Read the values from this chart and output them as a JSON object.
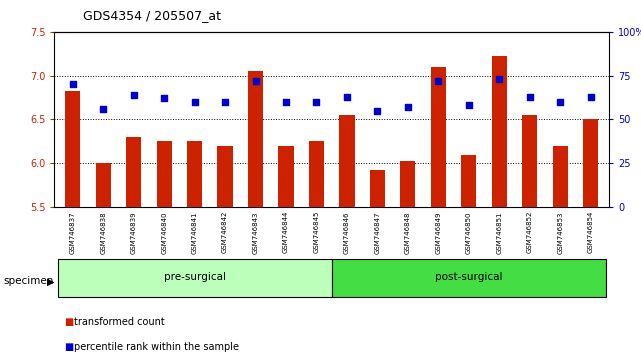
{
  "title": "GDS4354 / 205507_at",
  "samples": [
    "GSM746837",
    "GSM746838",
    "GSM746839",
    "GSM746840",
    "GSM746841",
    "GSM746842",
    "GSM746843",
    "GSM746844",
    "GSM746845",
    "GSM746846",
    "GSM746847",
    "GSM746848",
    "GSM746849",
    "GSM746850",
    "GSM746851",
    "GSM746852",
    "GSM746853",
    "GSM746854"
  ],
  "bar_values": [
    6.82,
    6.0,
    6.3,
    6.25,
    6.25,
    6.2,
    7.05,
    6.2,
    6.25,
    6.55,
    5.92,
    6.03,
    7.1,
    6.1,
    7.22,
    6.55,
    6.2,
    6.5
  ],
  "percentile_values": [
    70.0,
    56.0,
    64.0,
    62.0,
    60.0,
    60.0,
    72.0,
    60.0,
    60.0,
    63.0,
    55.0,
    57.0,
    72.0,
    58.0,
    73.0,
    63.0,
    60.0,
    63.0
  ],
  "ylim_left": [
    5.5,
    7.5
  ],
  "ylim_right": [
    0,
    100
  ],
  "yticks_left": [
    5.5,
    6.0,
    6.5,
    7.0,
    7.5
  ],
  "yticks_right": [
    0,
    25,
    50,
    75,
    100
  ],
  "ytick_labels_right": [
    "0",
    "25",
    "50",
    "75",
    "100%"
  ],
  "grid_values": [
    6.0,
    6.5,
    7.0
  ],
  "bar_color": "#cc2200",
  "dot_color": "#0000cc",
  "groups": [
    {
      "label": "pre-surgical",
      "color": "#bbffbb",
      "start": 0,
      "end": 9
    },
    {
      "label": "post-surgical",
      "color": "#44dd44",
      "start": 9,
      "end": 18
    }
  ],
  "specimen_label": "specimen",
  "legend_items": [
    {
      "label": "transformed count",
      "color": "#cc2200"
    },
    {
      "label": "percentile rank within the sample",
      "color": "#0000cc"
    }
  ],
  "background_color": "#ffffff",
  "tick_area_color": "#c8c8c8",
  "title_fontsize": 9,
  "axis_fontsize": 7,
  "bar_width": 0.5
}
